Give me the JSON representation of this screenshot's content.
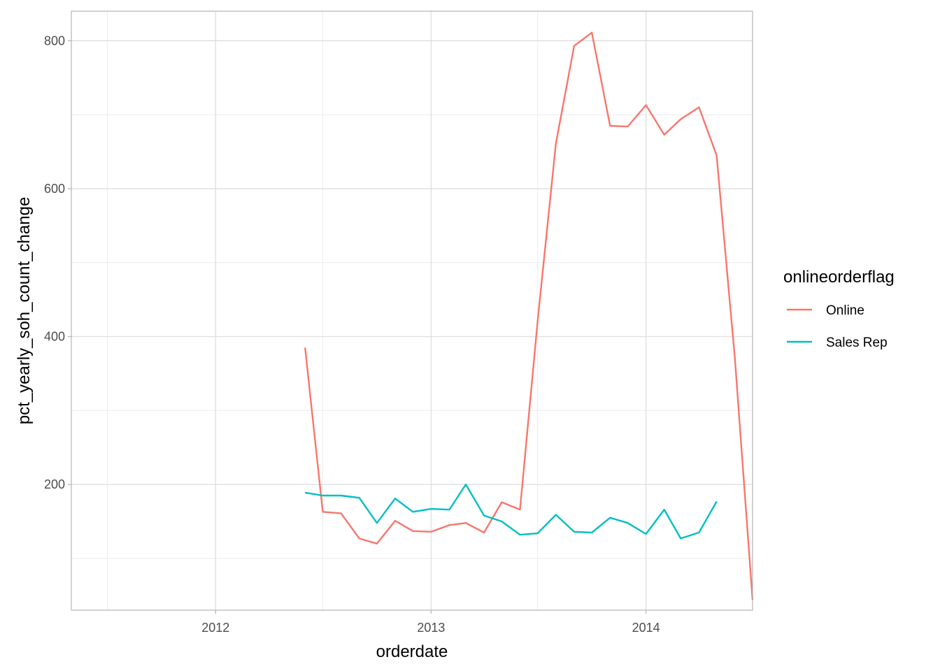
{
  "chart_data": {
    "type": "line",
    "title": "",
    "xlabel": "orderdate",
    "ylabel": "pct_yearly_soh_count_change",
    "x_scale": "date",
    "xlim": [
      "2011-05-01",
      "2014-07-01"
    ],
    "ylim": [
      30,
      840
    ],
    "x_ticks": [
      "2012-01-01",
      "2013-01-01",
      "2014-01-01"
    ],
    "x_tick_labels": [
      "2012",
      "2013",
      "2014"
    ],
    "y_ticks": [
      200,
      400,
      600,
      800
    ],
    "y_tick_labels": [
      "200",
      "400",
      "600",
      "800"
    ],
    "grid": true,
    "theme": "light",
    "legend": {
      "title": "onlineorderflag",
      "position": "right"
    },
    "series": [
      {
        "name": "Online",
        "color": "#F8766D",
        "x": [
          "2012-06-01",
          "2012-07-01",
          "2012-08-01",
          "2012-09-01",
          "2012-10-01",
          "2012-11-01",
          "2012-12-01",
          "2013-01-01",
          "2013-02-01",
          "2013-03-01",
          "2013-04-01",
          "2013-05-01",
          "2013-06-01",
          "2013-07-01",
          "2013-08-01",
          "2013-09-01",
          "2013-10-01",
          "2013-11-01",
          "2013-12-01",
          "2014-01-01",
          "2014-02-01",
          "2014-03-01",
          "2014-04-01",
          "2014-05-01",
          "2014-06-01",
          "2014-07-01"
        ],
        "y": [
          385,
          163,
          161,
          127,
          120,
          151,
          137,
          136,
          145,
          148,
          135,
          176,
          166,
          421,
          661,
          793,
          811,
          685,
          684,
          713,
          673,
          694,
          710,
          645,
          371,
          44
        ]
      },
      {
        "name": "Sales Rep",
        "color": "#00BFC4",
        "x": [
          "2012-06-01",
          "2012-07-01",
          "2012-08-01",
          "2012-09-01",
          "2012-10-01",
          "2012-11-01",
          "2012-12-01",
          "2013-01-01",
          "2013-02-01",
          "2013-03-01",
          "2013-04-01",
          "2013-05-01",
          "2013-06-01",
          "2013-07-01",
          "2013-08-01",
          "2013-09-01",
          "2013-10-01",
          "2013-11-01",
          "2013-12-01",
          "2014-01-01",
          "2014-02-01",
          "2014-03-01",
          "2014-04-01",
          "2014-05-01"
        ],
        "y": [
          189,
          185,
          185,
          182,
          148,
          181,
          163,
          167,
          166,
          200,
          158,
          150,
          132,
          134,
          159,
          136,
          135,
          155,
          148,
          133,
          166,
          127,
          135,
          177
        ]
      }
    ]
  }
}
